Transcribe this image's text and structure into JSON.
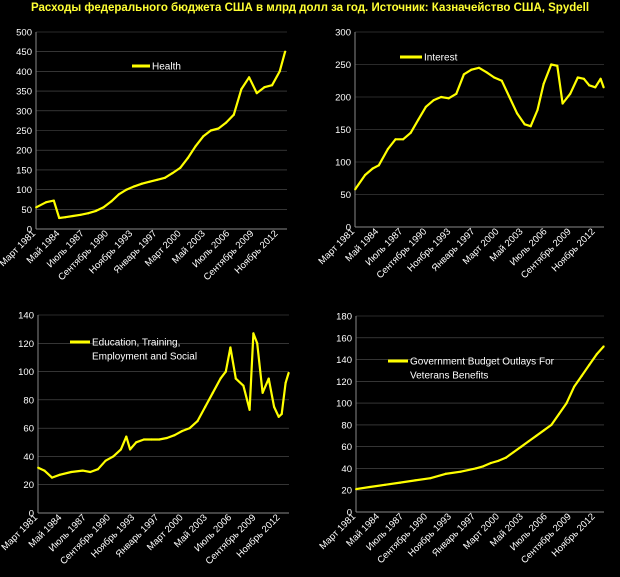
{
  "title": "Расходы федерального бюджета США в млрд долл за год. Источник: Казначейство США, Spydell",
  "colors": {
    "background": "#000000",
    "line": "#ffff00",
    "grid": "#555555",
    "text": "#ffffff",
    "title": "#ffff33"
  },
  "chart_data": [
    {
      "type": "line",
      "series": [
        {
          "name": "Health",
          "x": [
            1981.2,
            1982.5,
            1983.5,
            1984.2,
            1985,
            1986,
            1987,
            1988,
            1989,
            1990,
            1991,
            1992,
            1993,
            1994,
            1995,
            1996,
            1997,
            1998,
            1999,
            2000,
            2001,
            2002,
            2003,
            2004,
            2005,
            2006,
            2007,
            2008,
            2009,
            2010,
            2011,
            2012,
            2013,
            2013.7
          ],
          "values": [
            55,
            68,
            72,
            28,
            30,
            33,
            36,
            40,
            46,
            55,
            70,
            88,
            100,
            108,
            115,
            120,
            125,
            130,
            142,
            155,
            180,
            210,
            235,
            250,
            255,
            270,
            290,
            355,
            385,
            345,
            360,
            365,
            400,
            450
          ]
        }
      ],
      "categories": [
        "Март 1981",
        "Май 1984",
        "Июль 1987",
        "Сентябрь 1990",
        "Ноябрь 1993",
        "Январь 1997",
        "Март 2000",
        "Май 2003",
        "Июль 2006",
        "Сентябрь 2009",
        "Ноябрь 2012"
      ],
      "y_ticks": [
        "0",
        "50",
        "100",
        "150",
        "200",
        "250",
        "300",
        "350",
        "400",
        "450",
        "500"
      ],
      "ylim": [
        0,
        500
      ],
      "legend_position": "top-left"
    },
    {
      "type": "line",
      "series": [
        {
          "name": "Interest",
          "x": [
            1981.2,
            1982.5,
            1983.5,
            1984.3,
            1985.5,
            1986.5,
            1987.5,
            1988.5,
            1989.5,
            1990.5,
            1991.5,
            1992.5,
            1993.5,
            1994.5,
            1995.5,
            1996.5,
            1997.5,
            1998.5,
            1999.5,
            2000.5,
            2001.5,
            2002.5,
            2003.5,
            2004.3,
            2005.2,
            2006,
            2007,
            2007.8,
            2008.5,
            2009.5,
            2010.5,
            2011.3,
            2012,
            2012.8,
            2013.5,
            2013.9
          ],
          "values": [
            58,
            80,
            90,
            95,
            120,
            135,
            135,
            145,
            165,
            185,
            195,
            200,
            198,
            205,
            235,
            242,
            245,
            238,
            230,
            225,
            200,
            175,
            158,
            155,
            180,
            220,
            250,
            248,
            190,
            205,
            230,
            228,
            218,
            215,
            228,
            215
          ]
        }
      ],
      "categories": [
        "Март 1981",
        "Май 1984",
        "Июль 1987",
        "Сентябрь 1990",
        "Ноябрь 1993",
        "Январь 1997",
        "Март 2000",
        "Май 2003",
        "Июль 2006",
        "Сентябрь 2009",
        "Ноябрь 2012"
      ],
      "y_ticks": [
        "0",
        "50",
        "100",
        "150",
        "200",
        "250",
        "300"
      ],
      "ylim": [
        0,
        300
      ],
      "legend_position": "top-left"
    },
    {
      "type": "line",
      "series": [
        {
          "name": "Education, Training, Employment and Social",
          "x": [
            1981.2,
            1982,
            1983,
            1984,
            1985.5,
            1987,
            1988,
            1989,
            1990,
            1991,
            1992,
            1992.7,
            1993.2,
            1994,
            1995,
            1996,
            1997,
            1998,
            1999,
            2000,
            2001,
            2002,
            2003,
            2004,
            2005,
            2005.7,
            2006.3,
            2007,
            2008,
            2008.8,
            2009.3,
            2009.8,
            2010.5,
            2011.3,
            2012,
            2012.6,
            2013,
            2013.5,
            2013.9
          ],
          "values": [
            32,
            30,
            25,
            27,
            29,
            30,
            29,
            31,
            37,
            40,
            45,
            54,
            45,
            50,
            52,
            52,
            52,
            53,
            55,
            58,
            60,
            65,
            75,
            85,
            95,
            100,
            117,
            95,
            90,
            73,
            127,
            120,
            85,
            95,
            75,
            68,
            70,
            92,
            99
          ]
        }
      ],
      "categories": [
        "Март 1981",
        "Май 1984",
        "Июль 1987",
        "Сентябрь 1990",
        "Ноябрь 1993",
        "Январь 1997",
        "Март 2000",
        "Май 2003",
        "Июль 2006",
        "Сентябрь 2009",
        "Ноябрь 2012"
      ],
      "y_ticks": [
        "0",
        "20",
        "40",
        "60",
        "80",
        "100",
        "120",
        "140"
      ],
      "ylim": [
        0,
        140
      ],
      "legend_position": "top-left",
      "legend_lines": [
        "Education, Training,",
        "Employment and Social"
      ]
    },
    {
      "type": "line",
      "series": [
        {
          "name": "Government Budget Outlays For Veterans Benefits",
          "x": [
            1981.2,
            1983,
            1985,
            1987,
            1989,
            1991,
            1993,
            1995,
            1997,
            1998,
            1999,
            2000,
            2001,
            2002,
            2003,
            2004,
            2005,
            2006,
            2007,
            2008,
            2009,
            2010,
            2011,
            2012,
            2013,
            2013.9
          ],
          "values": [
            21,
            23,
            25,
            27,
            29,
            31,
            35,
            37,
            40,
            42,
            45,
            47,
            50,
            55,
            60,
            65,
            70,
            75,
            80,
            90,
            100,
            115,
            125,
            135,
            145,
            152
          ]
        }
      ],
      "categories": [
        "Март 1981",
        "Май 1984",
        "Июль 1987",
        "Сентябрь 1990",
        "Ноябрь 1993",
        "Январь 1997",
        "Март 2000",
        "Май 2003",
        "Июль 2006",
        "Сентябрь 2009",
        "Ноябрь 2012"
      ],
      "y_ticks": [
        "0",
        "20",
        "40",
        "60",
        "80",
        "100",
        "120",
        "140",
        "160",
        "180"
      ],
      "ylim": [
        0,
        180
      ],
      "legend_position": "top-left",
      "legend_lines": [
        "Government Budget Outlays For",
        "Veterans Benefits"
      ]
    }
  ]
}
